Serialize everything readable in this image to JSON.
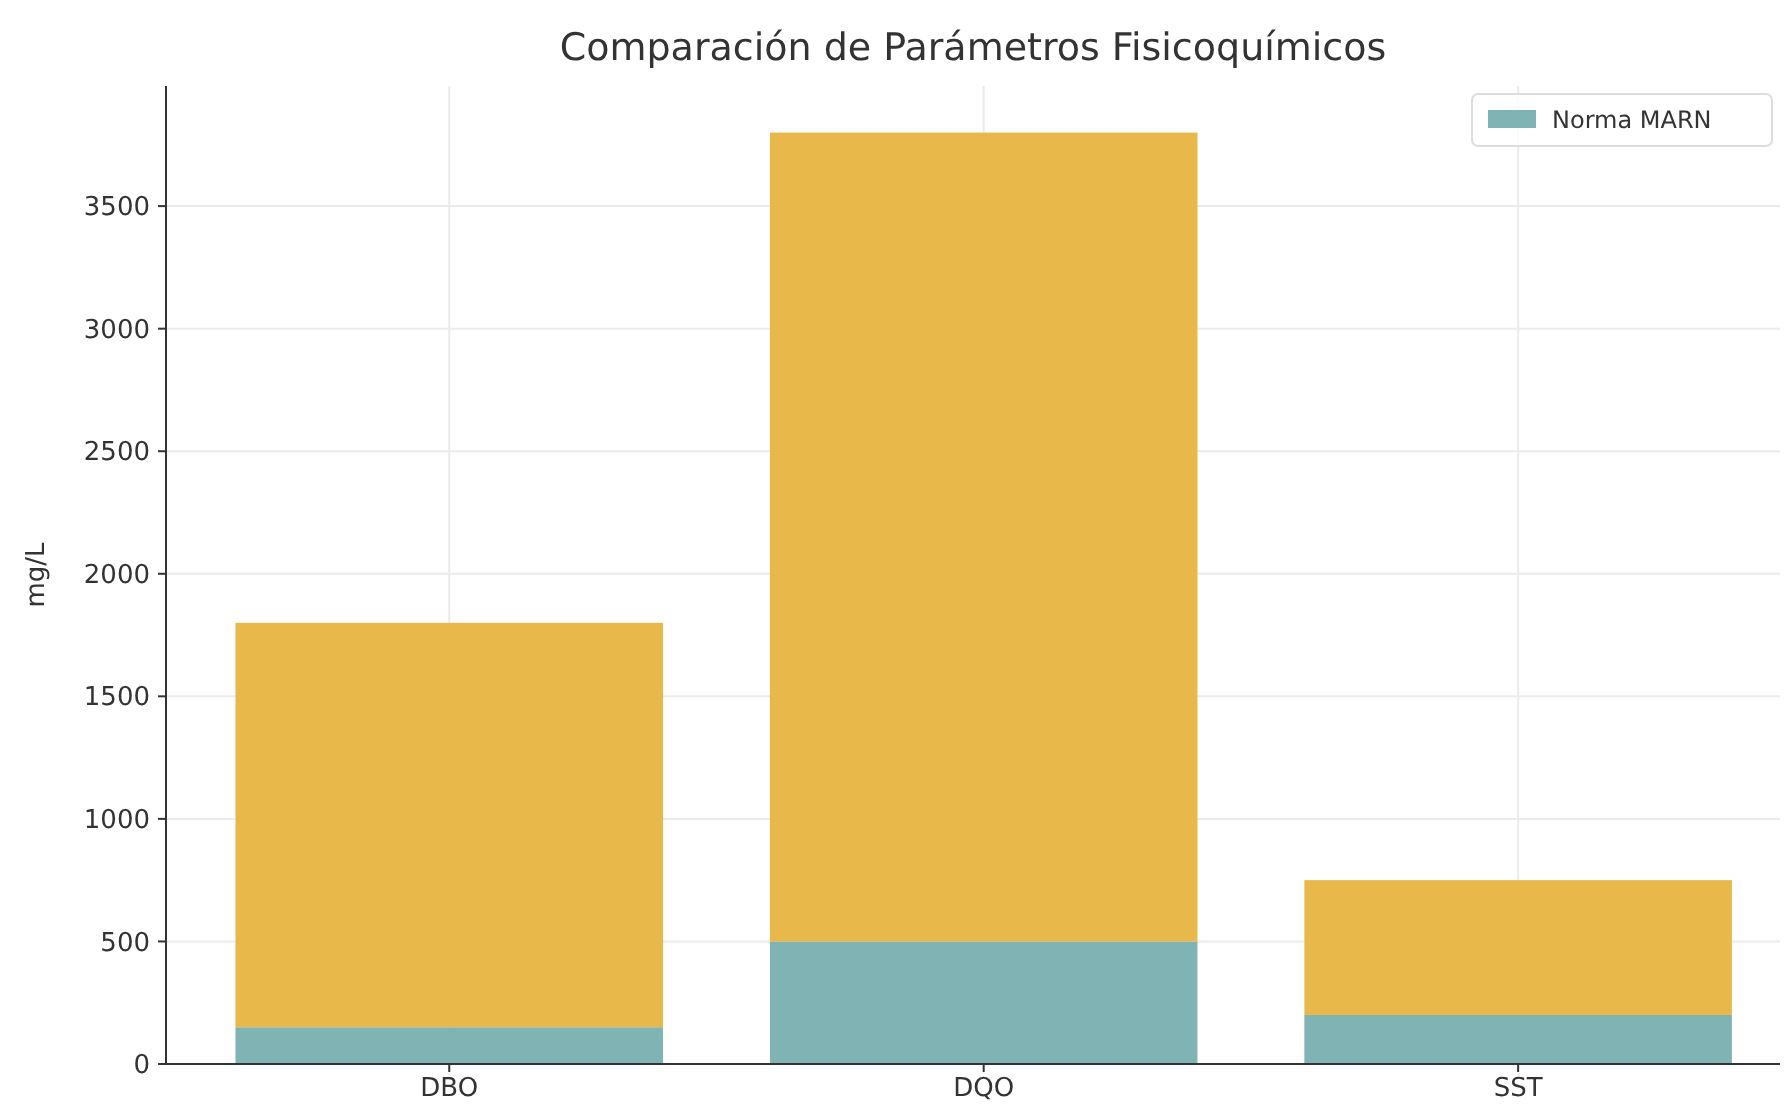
{
  "chart_data": {
    "type": "bar",
    "title": "Comparación de Parámetros Fisicoquímicos",
    "ylabel": "mg/L",
    "categories": [
      "DBO",
      "DQO",
      "SST"
    ],
    "stacked": true,
    "series": [
      {
        "name": "Norma MARN",
        "color": "#80b4b4",
        "values": [
          150,
          500,
          200
        ]
      },
      {
        "color": "#e8b84a",
        "values": [
          1650,
          3300,
          550
        ]
      }
    ],
    "ylim": [
      0,
      3990
    ],
    "yticks": [
      0,
      500,
      1000,
      1500,
      2000,
      2500,
      3000,
      3500
    ],
    "grid": true,
    "legend": "top right"
  }
}
